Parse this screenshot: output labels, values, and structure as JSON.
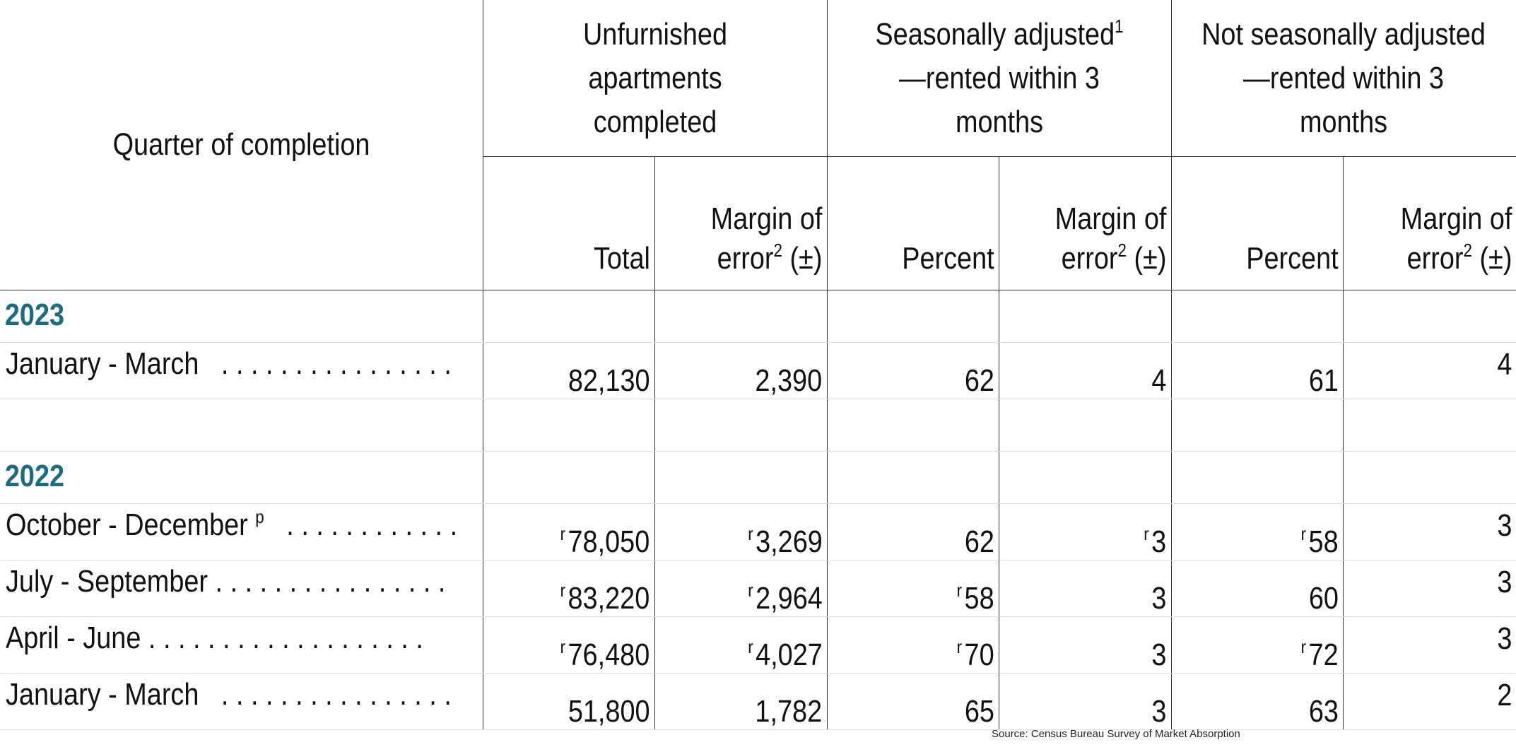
{
  "header": {
    "quarter_label": "Quarter of completion",
    "group1": "Unfurnished apartments completed",
    "group2_pre": "Seasonally adjusted",
    "group2_sup": "1",
    "group2_post": "—rented within 3 months",
    "group3": "Not seasonally adjusted—rented within 3 months",
    "total": "Total",
    "percent": "Percent",
    "moe_line1": "Margin of",
    "moe_line2": "error",
    "moe_sup": "2",
    "moe_pm": "(±)"
  },
  "sections": [
    {
      "year": "2023",
      "rows": [
        {
          "label": "January - March",
          "dots": ". . . . . . . . . . . . . . . .",
          "total": "82,130",
          "moe1": "2,390",
          "sa_pct": "62",
          "sa_moe": "4",
          "nsa_pct": "61",
          "nsa_moe": "4"
        }
      ]
    },
    {
      "year": "2022",
      "rows": [
        {
          "label": "October - December",
          "label_sup": "p",
          "dots": ". . . . . . . . . . . .",
          "total": "78,050",
          "total_r": "r",
          "moe1": "3,269",
          "moe1_r": "r",
          "sa_pct": "62",
          "sa_moe": "3",
          "sa_moe_r": "r",
          "nsa_pct": "58",
          "nsa_pct_r": "r",
          "nsa_moe": "3"
        },
        {
          "label": "July - September",
          "dots": ". . . . . . . . . . . . . . . .",
          "total": "83,220",
          "total_r": "r",
          "moe1": "2,964",
          "moe1_r": "r",
          "sa_pct": "58",
          "sa_pct_r": "r",
          "sa_moe": "3",
          "nsa_pct": "60",
          "nsa_moe": "3"
        },
        {
          "label": "April - June",
          "dots": ". . . . . . . . . . . . . . . . . . .",
          "total": "76,480",
          "total_r": "r",
          "moe1": "4,027",
          "moe1_r": "r",
          "sa_pct": "70",
          "sa_pct_r": "r",
          "sa_moe": "3",
          "nsa_pct": "72",
          "nsa_pct_r": "r",
          "nsa_moe": "3"
        },
        {
          "label": "January - March",
          "dots": ". . . . . . . . . . . . . . . .",
          "total": "51,800",
          "moe1": "1,782",
          "sa_pct": "65",
          "sa_moe": "3",
          "nsa_pct": "63",
          "nsa_moe": "2"
        }
      ]
    }
  ],
  "footer": {
    "source": "Source: Census Bureau Survey of Market Absorption"
  },
  "colors": {
    "year": "#1c6b80",
    "border": "#333333",
    "row_rule": "#dcdcdc"
  }
}
